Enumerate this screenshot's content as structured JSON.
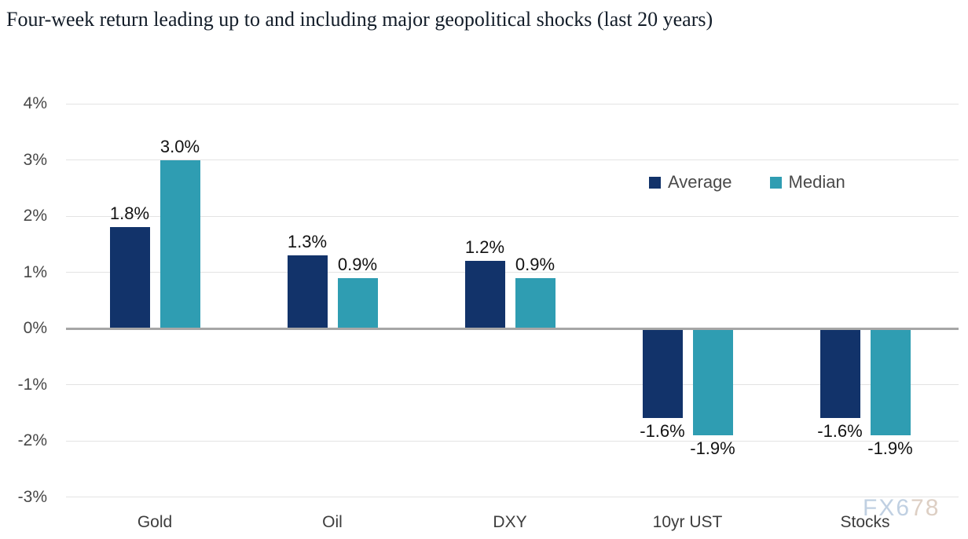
{
  "chart_data": {
    "type": "bar",
    "title": "Four-week return leading up to and including major geopolitical shocks (last 20 years)",
    "categories": [
      "Gold",
      "Oil",
      "DXY",
      "10yr UST",
      "Stocks"
    ],
    "series": [
      {
        "name": "Average",
        "color": "#12336a",
        "values": [
          1.8,
          1.3,
          1.2,
          -1.6,
          -1.6
        ],
        "labels": [
          "1.8%",
          "1.3%",
          "1.2%",
          "-1.6%",
          "-1.6%"
        ]
      },
      {
        "name": "Median",
        "color": "#2f9db2",
        "values": [
          3.0,
          0.9,
          0.9,
          -1.9,
          -1.9
        ],
        "labels": [
          "3.0%",
          "0.9%",
          "0.9%",
          "-1.9%",
          "-1.9%"
        ]
      }
    ],
    "y_axis": {
      "min": -3,
      "max": 4,
      "tick_step": 1,
      "tick_labels": [
        "4%",
        "3%",
        "2%",
        "1%",
        "0%",
        "-1%",
        "-2%",
        "-3%"
      ]
    },
    "legend": {
      "position": "upper-right",
      "entries": [
        "Average",
        "Median"
      ]
    },
    "grid": "horizontal",
    "colors": {
      "gridline": "#e3e3e3",
      "zero_axis": "#a6a6a6",
      "data_label": "#121212",
      "tick_label": "#474747",
      "category_label": "#3d3d3d"
    }
  },
  "watermark": {
    "text": "FX678",
    "part1": "FX6",
    "part2": "78",
    "color1": "#b6c8dd",
    "color2": "#d8c7ba"
  }
}
